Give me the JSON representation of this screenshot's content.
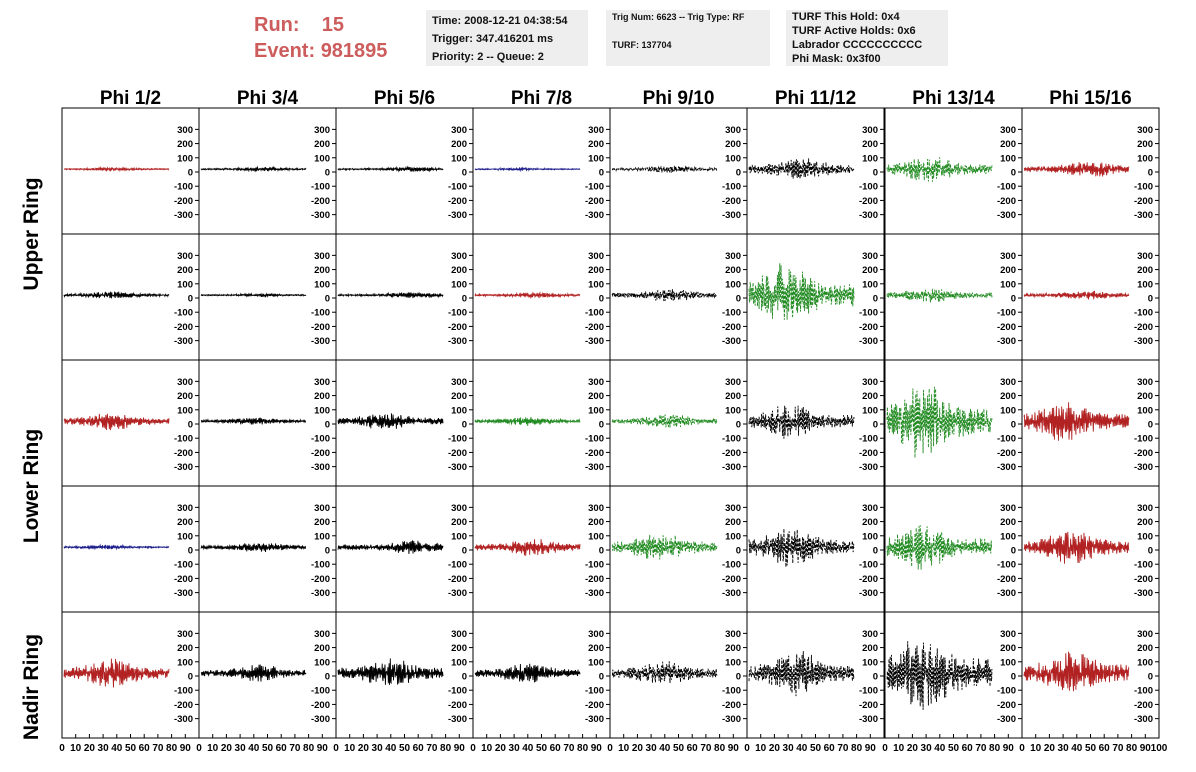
{
  "header": {
    "run_label": "Run:",
    "run_value": "15",
    "event_label": "Event:",
    "event_value": "981895",
    "time_line": "Time: 2008-12-21 04:38:54",
    "trigger_line": "Trigger: 347.416201 ms",
    "priority_line": "Priority: 2 -- Queue: 2",
    "trig_line": "Trig Num: 6623 -- Trig Type: RF",
    "turf_line": "TURF: 137704",
    "turf_hold": "TURF This Hold: 0x4",
    "turf_active": "TURF Active Holds: 0x6",
    "labrador": "Labrador CCCCCCCCCC",
    "phi_mask": "Phi Mask: 0x3f00"
  },
  "chart_data": {
    "type": "line",
    "columns": [
      "Phi 1/2",
      "Phi 3/4",
      "Phi 5/6",
      "Phi 7/8",
      "Phi 9/10",
      "Phi 11/12",
      "Phi 13/14",
      "Phi 15/16"
    ],
    "rows": [
      "Upper Ring",
      "Upper Ring",
      "Lower Ring",
      "Lower Ring",
      "Nadir Ring"
    ],
    "row_labels": [
      "Upper Ring",
      "Lower Ring",
      "Nadir Ring"
    ],
    "xlim": [
      0,
      100
    ],
    "ylim": [
      -380,
      380
    ],
    "x_ticks": [
      "0",
      "10",
      "20",
      "30",
      "40",
      "50",
      "60",
      "70",
      "80",
      "90",
      "100"
    ],
    "y_ticks": [
      300,
      200,
      100,
      0,
      -100,
      -200,
      -300
    ],
    "y_tick_labels": [
      "300",
      "200",
      "100",
      "0",
      "-100",
      "-200",
      "-300"
    ],
    "grid": false,
    "panels": [
      [
        {
          "color": "#b22222",
          "dash": false,
          "amp": 12,
          "center": 45
        },
        {
          "color": "#000000",
          "dash": false,
          "amp": 14,
          "center": 60
        },
        {
          "color": "#000000",
          "dash": false,
          "amp": 16,
          "center": 70
        },
        {
          "color": "#1a1a8a",
          "dash": false,
          "amp": 10,
          "center": 40
        },
        {
          "color": "#000000",
          "dash": true,
          "amp": 25,
          "center": 55
        },
        {
          "color": "#000000",
          "dash": true,
          "amp": 80,
          "center": 50
        },
        {
          "color": "#228b22",
          "dash": true,
          "amp": 90,
          "center": 40
        },
        {
          "color": "#b22222",
          "dash": false,
          "amp": 60,
          "center": 65
        }
      ],
      [
        {
          "color": "#000000",
          "dash": false,
          "amp": 25,
          "center": 45
        },
        {
          "color": "#000000",
          "dash": false,
          "amp": 12,
          "center": 60
        },
        {
          "color": "#000000",
          "dash": false,
          "amp": 20,
          "center": 70
        },
        {
          "color": "#b22222",
          "dash": false,
          "amp": 20,
          "center": 55
        },
        {
          "color": "#000000",
          "dash": true,
          "amp": 45,
          "center": 55
        },
        {
          "color": "#228b22",
          "dash": true,
          "amp": 220,
          "center": 35
        },
        {
          "color": "#228b22",
          "dash": true,
          "amp": 50,
          "center": 40
        },
        {
          "color": "#b22222",
          "dash": false,
          "amp": 30,
          "center": 60
        }
      ],
      [
        {
          "color": "#b22222",
          "dash": false,
          "amp": 60,
          "center": 45
        },
        {
          "color": "#000000",
          "dash": false,
          "amp": 25,
          "center": 50
        },
        {
          "color": "#000000",
          "dash": false,
          "amp": 60,
          "center": 45
        },
        {
          "color": "#228b22",
          "dash": false,
          "amp": 30,
          "center": 50
        },
        {
          "color": "#228b22",
          "dash": true,
          "amp": 50,
          "center": 55
        },
        {
          "color": "#000000",
          "dash": true,
          "amp": 120,
          "center": 40
        },
        {
          "color": "#228b22",
          "dash": true,
          "amp": 260,
          "center": 35
        },
        {
          "color": "#b22222",
          "dash": false,
          "amp": 140,
          "center": 40
        }
      ],
      [
        {
          "color": "#1a1a8a",
          "dash": false,
          "amp": 15,
          "center": 40
        },
        {
          "color": "#000000",
          "dash": false,
          "amp": 35,
          "center": 55
        },
        {
          "color": "#000000",
          "dash": false,
          "amp": 50,
          "center": 70
        },
        {
          "color": "#b22222",
          "dash": false,
          "amp": 60,
          "center": 55
        },
        {
          "color": "#228b22",
          "dash": true,
          "amp": 100,
          "center": 45
        },
        {
          "color": "#000000",
          "dash": true,
          "amp": 140,
          "center": 40
        },
        {
          "color": "#228b22",
          "dash": true,
          "amp": 160,
          "center": 35
        },
        {
          "color": "#b22222",
          "dash": false,
          "amp": 120,
          "center": 45
        }
      ],
      [
        {
          "color": "#b22222",
          "dash": false,
          "amp": 100,
          "center": 45
        },
        {
          "color": "#000000",
          "dash": false,
          "amp": 60,
          "center": 55
        },
        {
          "color": "#000000",
          "dash": false,
          "amp": 100,
          "center": 50
        },
        {
          "color": "#000000",
          "dash": false,
          "amp": 70,
          "center": 50
        },
        {
          "color": "#000000",
          "dash": true,
          "amp": 90,
          "center": 50
        },
        {
          "color": "#000000",
          "dash": true,
          "amp": 160,
          "center": 45
        },
        {
          "color": "#000000",
          "dash": true,
          "amp": 280,
          "center": 35
        },
        {
          "color": "#b22222",
          "dash": false,
          "amp": 160,
          "center": 45
        }
      ]
    ]
  }
}
